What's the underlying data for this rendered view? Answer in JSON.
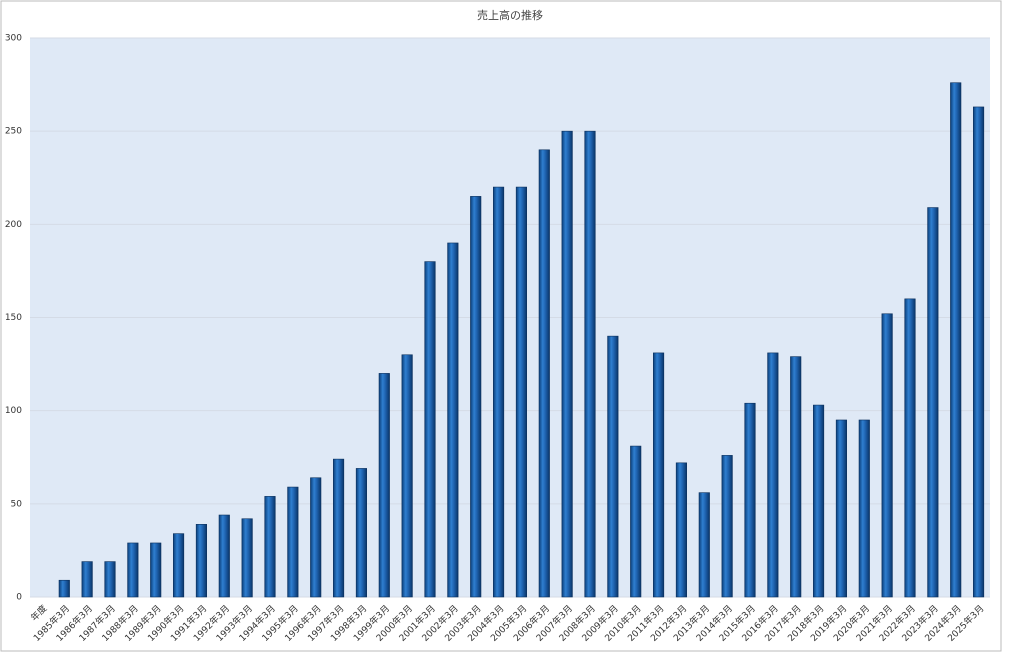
{
  "chart_data": {
    "type": "bar",
    "title": "売上高の推移",
    "categories": [
      "年度",
      "1985年3月",
      "1986年3月",
      "1987年3月",
      "1988年3月",
      "1989年3月",
      "1990年3月",
      "1991年3月",
      "1992年3月",
      "1993年3月",
      "1994年3月",
      "1995年3月",
      "1996年3月",
      "1997年3月",
      "1998年3月",
      "1999年3月",
      "2000年3月",
      "2001年3月",
      "2002年3月",
      "2003年3月",
      "2004年3月",
      "2005年3月",
      "2006年3月",
      "2007年3月",
      "2008年3月",
      "2009年3月",
      "2010年3月",
      "2011年3月",
      "2012年3月",
      "2013年3月",
      "2014年3月",
      "2015年3月",
      "2016年3月",
      "2017年3月",
      "2018年3月",
      "2019年3月",
      "2020年3月",
      "2021年3月",
      "2022年3月",
      "2023年3月",
      "2024年3月",
      "2025年3月"
    ],
    "values": [
      null,
      9,
      19,
      19,
      29,
      29,
      34,
      39,
      44,
      42,
      54,
      59,
      64,
      74,
      69,
      120,
      130,
      180,
      190,
      215,
      220,
      220,
      240,
      250,
      250,
      140,
      81,
      131,
      72,
      56,
      76,
      104,
      131,
      129,
      103,
      95,
      95,
      152,
      160,
      209,
      276,
      263
    ],
    "color": "#1f63b0",
    "ylim": [
      0,
      300
    ],
    "yticks": [
      0,
      50,
      100,
      150,
      200,
      250,
      300
    ],
    "grid": true
  }
}
